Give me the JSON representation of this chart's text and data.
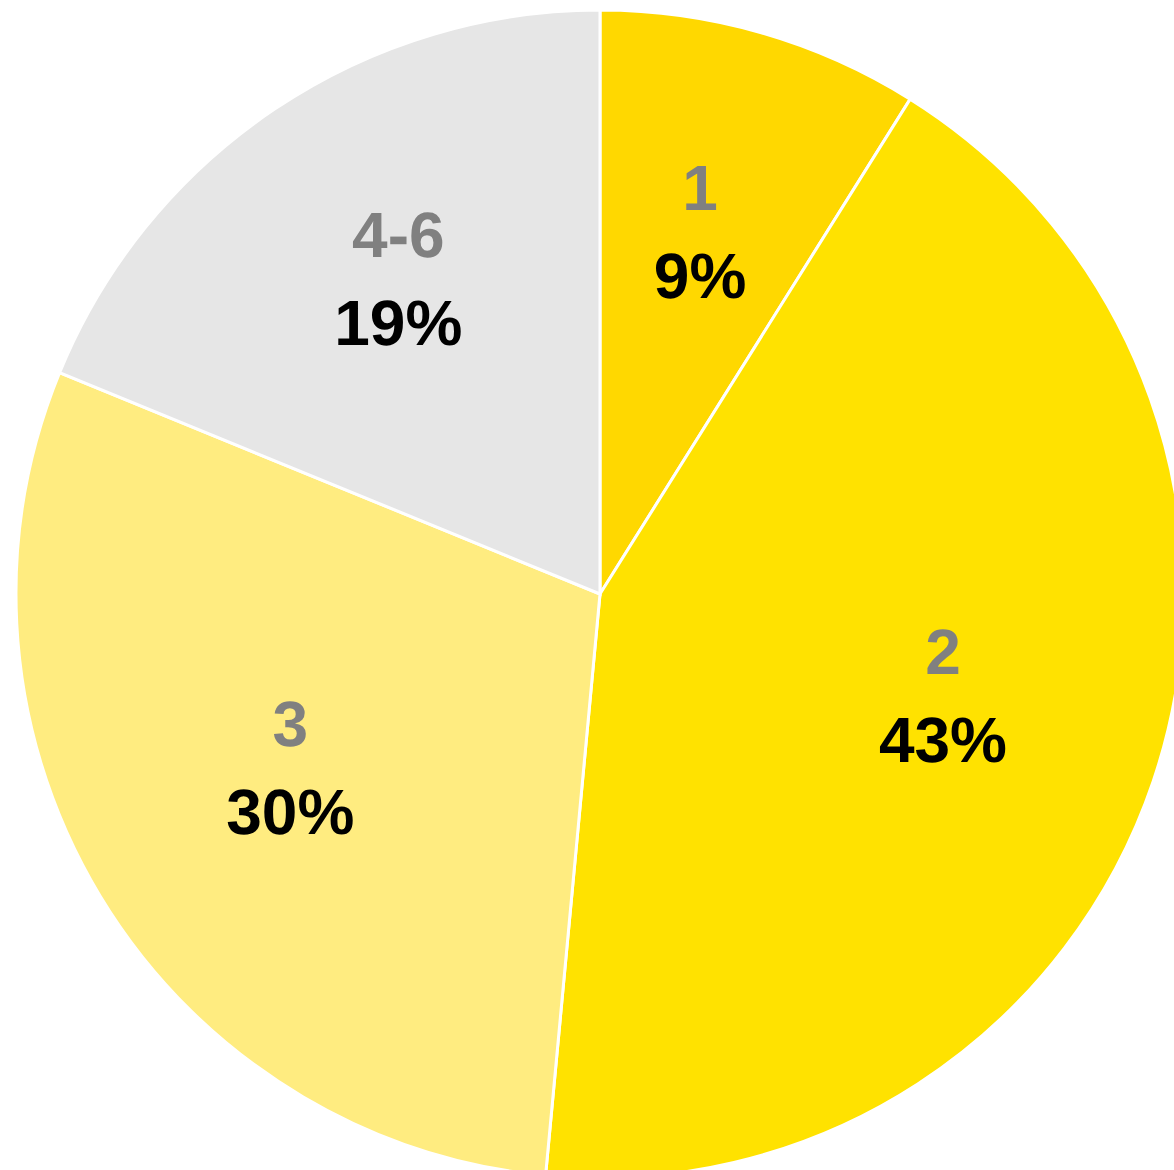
{
  "chart_data": {
    "type": "pie",
    "categories": [
      "1",
      "2",
      "3",
      "4-6"
    ],
    "values": [
      9,
      43,
      30,
      19
    ],
    "value_labels": [
      "9%",
      "43%",
      "30%",
      "19%"
    ],
    "colors": [
      "#ffd800",
      "#ffe200",
      "#ffec80",
      "#e6e6e6"
    ]
  }
}
